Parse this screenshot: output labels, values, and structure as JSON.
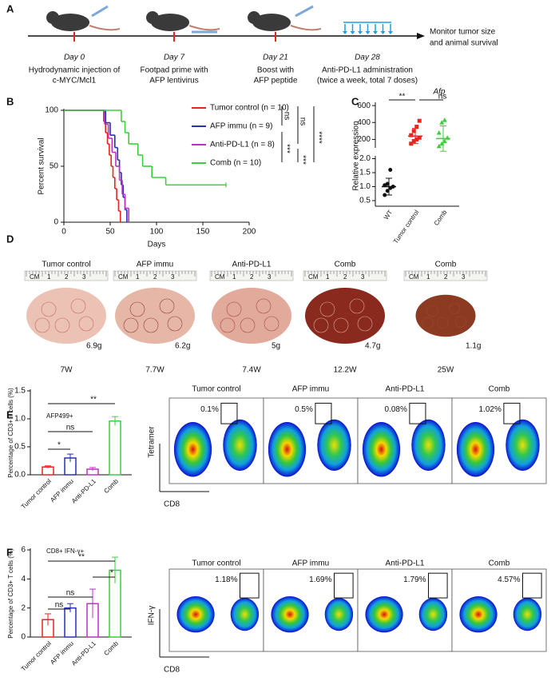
{
  "panel_letters": [
    "A",
    "B",
    "C",
    "D",
    "E",
    "F"
  ],
  "timeline": {
    "days": [
      "Day 0",
      "Day 7",
      "Day 21",
      "Day 28"
    ],
    "descriptions": [
      [
        "Hydrodynamic injection of",
        " c-MYC/Mcl1"
      ],
      [
        "Footpad prime with",
        "AFP lentivirus"
      ],
      [
        "Boost with",
        "AFP peptide"
      ],
      [
        "Anti-PD-L1 administration",
        "(twice a week, total 7 doses)"
      ]
    ],
    "end_label": [
      "Monitor tumor size",
      "and animal survival"
    ]
  },
  "chart_data": [
    {
      "type": "survival",
      "xlabel": "Days",
      "ylabel": "Percent survival",
      "xlim": [
        0,
        200
      ],
      "xticks": [
        0,
        50,
        100,
        150,
        200
      ],
      "ylim": [
        0,
        100
      ],
      "yticks": [
        0,
        50,
        100
      ],
      "series": [
        {
          "name": "Tumor control (n = 10)",
          "color": "#e8241e",
          "x": [
            0,
            43,
            45,
            47,
            49,
            51,
            53,
            55,
            57,
            59,
            61
          ],
          "values": [
            100,
            90,
            80,
            70,
            60,
            50,
            40,
            30,
            20,
            10,
            0
          ]
        },
        {
          "name": "AFP immu (n = 9)",
          "color": "#2a2fb8",
          "x": [
            0,
            45,
            50,
            55,
            58,
            60,
            62,
            64,
            66,
            68
          ],
          "values": [
            100,
            88.9,
            77.8,
            66.7,
            55.6,
            44.4,
            33.3,
            22.2,
            11.1,
            0
          ]
        },
        {
          "name": "Anti-PD-L1 (n = 8)",
          "color": "#c22fc8",
          "x": [
            0,
            44,
            48,
            52,
            56,
            60,
            63,
            66,
            70
          ],
          "values": [
            100,
            87.5,
            75,
            62.5,
            50,
            37.5,
            25,
            12.5,
            0
          ]
        },
        {
          "name": "Comb (n = 10)",
          "color": "#3ccf3c",
          "x": [
            0,
            62,
            66,
            70,
            80,
            85,
            95,
            110,
            175
          ],
          "values": [
            100,
            90,
            80,
            70,
            60,
            50,
            40,
            33.3,
            33.3
          ]
        }
      ],
      "annotations": [
        "ns",
        "ns",
        "****",
        "***",
        "***"
      ]
    },
    {
      "type": "dot",
      "title": "Afp",
      "ylabel": "Relative expression",
      "categories": [
        "WT",
        "Tumor control",
        "Comb"
      ],
      "groups": [
        {
          "color": "#111111",
          "points": [
            0.7,
            0.85,
            0.95,
            1.0,
            1.05,
            1.1,
            1.6
          ],
          "mean": 1.0,
          "sd": 0.3
        },
        {
          "color": "#e8241e",
          "points": [
            150,
            180,
            200,
            220,
            250,
            300,
            350,
            420
          ],
          "mean": 240,
          "sd": 90
        },
        {
          "color": "#3ccf3c",
          "points": [
            120,
            150,
            180,
            220,
            280,
            400,
            430
          ],
          "mean": 210,
          "sd": 150
        }
      ],
      "ylim_lower": [
        0.3,
        2.1
      ],
      "yticks_lower": [
        0.5,
        {
          "value": 1,
          "label": "1.0"
        },
        1.5,
        {
          "value": 2,
          "label": "2.0"
        }
      ],
      "ylim_upper": [
        100,
        620
      ],
      "yticks_upper": [
        200,
        400,
        600
      ],
      "annotations": [
        "**",
        "ns"
      ]
    },
    {
      "type": "bar",
      "title": "AFP499+",
      "ylabel": "Percentage of CD3+ T cells (%)",
      "categories": [
        "Tumor control",
        "AFP immu",
        "Anti-PD-L1",
        "Comb"
      ],
      "colors": [
        "#e8241e",
        "#2a2fb8",
        "#c22fc8",
        "#3ccf3c"
      ],
      "values": [
        0.14,
        0.3,
        0.1,
        0.96
      ],
      "errors": [
        0.02,
        0.07,
        0.03,
        0.08
      ],
      "ylim": [
        0,
        1.5
      ],
      "yticks": [
        {
          "value": 0,
          "label": "0.0"
        },
        0.5,
        {
          "value": 1,
          "label": "1.0"
        },
        1.5
      ],
      "annotations": [
        "**",
        "ns",
        "*"
      ]
    },
    {
      "type": "bar",
      "title": "CD8+ IFN-γ+",
      "ylabel": "Percentage of CD3+ T cells (%)",
      "categories": [
        "Tumor control",
        "AFP immu",
        "Anti-PD-L1",
        "Comb"
      ],
      "colors": [
        "#e8241e",
        "#2a2fb8",
        "#c22fc8",
        "#3ccf3c"
      ],
      "values": [
        1.2,
        2.0,
        2.3,
        4.6
      ],
      "errors": [
        0.4,
        0.3,
        1.0,
        0.9
      ],
      "ylim": [
        0,
        6
      ],
      "yticks": [
        0,
        2,
        4,
        6
      ],
      "annotations": [
        "**",
        "*",
        "ns",
        "ns"
      ]
    }
  ],
  "tumor_photos": {
    "ruler_labels": [
      "CM",
      "1",
      "2",
      "3"
    ],
    "items": [
      {
        "title": "Tumor control",
        "weight": "6.9g",
        "time": "7W"
      },
      {
        "title": "AFP immu",
        "weight": "6.2g",
        "time": "7.7W"
      },
      {
        "title": "Anti-PD-L1",
        "weight": "5g",
        "time": "7.4W"
      },
      {
        "title": "Comb",
        "weight": "4.7g",
        "time": "12.2W"
      },
      {
        "title": "Comb",
        "weight": "1.1g",
        "time": "25W"
      }
    ]
  },
  "flow_plots": [
    {
      "y_label": "Tetramer",
      "x_label": "CD8",
      "titles": [
        "Tumor control",
        "AFP immu",
        "Anti-PD-L1",
        "Comb"
      ],
      "gates": [
        "0.1%",
        "0.5%",
        "0.08%",
        "1.02%"
      ]
    },
    {
      "y_label": "IFN-γ",
      "x_label": "CD8",
      "titles": [
        "Tumor control",
        "AFP immu",
        "Anti-PD-L1",
        "Comb"
      ],
      "gates": [
        "1.18%",
        "1.69%",
        "1.79%",
        "4.57%"
      ]
    }
  ]
}
